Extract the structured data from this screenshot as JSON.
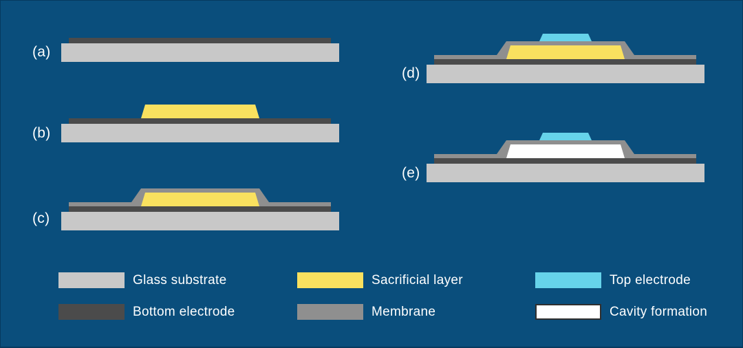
{
  "colors": {
    "background": "#0a4e7c",
    "glass_substrate": "#c8c8c8",
    "bottom_electrode": "#4b4b4b",
    "sacrificial_layer": "#f9e15f",
    "membrane": "#8f8f8f",
    "top_electrode": "#66d3ea",
    "cavity": "#ffffff",
    "cavity_border": "#2f2f2f",
    "text": "#ffffff"
  },
  "diagram": {
    "description": "Fabrication process flow cross-sections",
    "steps": [
      {
        "id": "a",
        "label": "(a)",
        "layers": [
          "substrate",
          "bottom_electrode"
        ]
      },
      {
        "id": "b",
        "label": "(b)",
        "layers": [
          "substrate",
          "bottom_electrode",
          "sacrificial"
        ]
      },
      {
        "id": "c",
        "label": "(c)",
        "layers": [
          "substrate",
          "bottom_electrode",
          "sacrificial",
          "membrane"
        ]
      },
      {
        "id": "d",
        "label": "(d)",
        "layers": [
          "substrate",
          "bottom_electrode",
          "sacrificial",
          "membrane",
          "top_electrode"
        ]
      },
      {
        "id": "e",
        "label": "(e)",
        "layers": [
          "substrate",
          "bottom_electrode",
          "cavity",
          "membrane",
          "top_electrode"
        ]
      }
    ]
  },
  "legend": [
    {
      "label": "Glass substrate",
      "layer": "glass_substrate",
      "outlined": false
    },
    {
      "label": "Bottom electrode",
      "layer": "bottom_electrode",
      "outlined": false
    },
    {
      "label": "Sacrificial layer",
      "layer": "sacrificial_layer",
      "outlined": false
    },
    {
      "label": "Membrane",
      "layer": "membrane",
      "outlined": false
    },
    {
      "label": "Top electrode",
      "layer": "top_electrode",
      "outlined": false
    },
    {
      "label": "Cavity formation",
      "layer": "cavity",
      "outlined": true
    }
  ]
}
